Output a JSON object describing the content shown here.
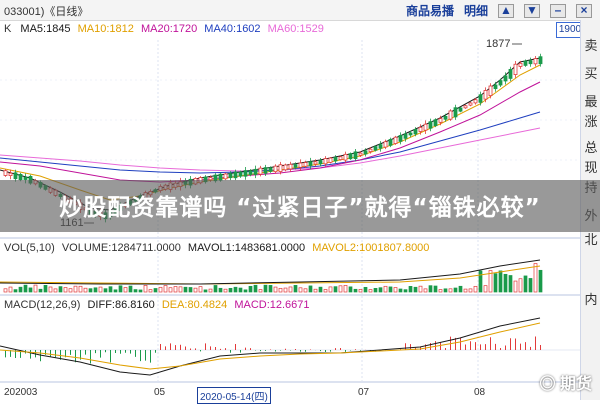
{
  "topbar": {
    "code": "033001)《日线》",
    "menu": [
      "商品易播",
      "明细"
    ],
    "buttons": [
      "▲",
      "▼",
      "–",
      "×"
    ]
  },
  "ma_legend": {
    "k": "K",
    "items": [
      {
        "text": "MA5:1845",
        "color": "#1a1a1a"
      },
      {
        "text": "MA10:1812",
        "color": "#e0a000"
      },
      {
        "text": "MA20:1720",
        "color": "#c0139a"
      },
      {
        "text": "MA40:1602",
        "color": "#1f3fbf"
      },
      {
        "text": "MA60:1529",
        "color": "#e86ad8"
      }
    ]
  },
  "price_box": "1900",
  "annotations": {
    "high": "1877",
    "low": "1161"
  },
  "banner_text": "炒股配资靠谱吗 “过紧日子”就得“锱铢必较”",
  "vol_legend": {
    "items": [
      {
        "text": "VOL(5,10)",
        "color": "#333333"
      },
      {
        "text": "VOLUME:1284711.0000",
        "color": "#333333"
      },
      {
        "text": "MAVOL1:1483681.0000",
        "color": "#1a1a1a"
      },
      {
        "text": "MAVOL2:1001807.8000",
        "color": "#e0a000"
      }
    ]
  },
  "macd_legend": {
    "items": [
      {
        "text": "MACD(12,26,9)",
        "color": "#333333"
      },
      {
        "text": "DIFF:86.8160",
        "color": "#1a1a1a"
      },
      {
        "text": "DEA:80.4824",
        "color": "#e0a000"
      },
      {
        "text": "MACD:12.6671",
        "color": "#c0139a"
      }
    ]
  },
  "side_tabs": [
    "卖",
    "买",
    "最",
    "涨",
    "总",
    "现",
    "持",
    "外",
    "北",
    "内"
  ],
  "dates": {
    "d1": "202003",
    "d2": "05",
    "active": "2020-05-14(四)",
    "d3": "07",
    "d4": "08"
  },
  "watermark": "◎ 期货"
}
